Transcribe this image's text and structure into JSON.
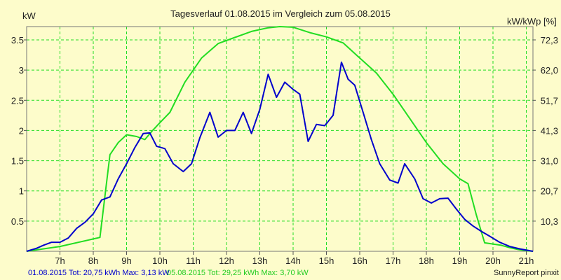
{
  "chart_data": {
    "type": "line",
    "title": "Tagesverlauf 01.08.2015 im Vergleich zum 05.08.2015",
    "ylabel_left": "kW",
    "ylabel_right": "kW/kWp [%]",
    "xlim": [
      6,
      21.2
    ],
    "ylim": [
      0,
      3.72
    ],
    "grid": true,
    "x_ticks": [
      {
        "x": 7,
        "label": "7h"
      },
      {
        "x": 8,
        "label": "8h"
      },
      {
        "x": 9,
        "label": "9h"
      },
      {
        "x": 10,
        "label": "10h"
      },
      {
        "x": 11,
        "label": "11h"
      },
      {
        "x": 12,
        "label": "12h"
      },
      {
        "x": 13,
        "label": "13h"
      },
      {
        "x": 14,
        "label": "14h"
      },
      {
        "x": 15,
        "label": "15h"
      },
      {
        "x": 16,
        "label": "16h"
      },
      {
        "x": 17,
        "label": "17h"
      },
      {
        "x": 18,
        "label": "18h"
      },
      {
        "x": 19,
        "label": "19h"
      },
      {
        "x": 20,
        "label": "20h"
      },
      {
        "x": 21,
        "label": "21h"
      }
    ],
    "y_ticks_left": [
      {
        "y": 0.5,
        "label": "0.5"
      },
      {
        "y": 1,
        "label": "1"
      },
      {
        "y": 1.5,
        "label": "1.5"
      },
      {
        "y": 2,
        "label": "2"
      },
      {
        "y": 2.5,
        "label": "2.5"
      },
      {
        "y": 3,
        "label": "3"
      },
      {
        "y": 3.5,
        "label": "3.5"
      }
    ],
    "y_ticks_right": [
      {
        "y": 0.5,
        "label": "10,3"
      },
      {
        "y": 1,
        "label": "20,7"
      },
      {
        "y": 1.5,
        "label": "31,0"
      },
      {
        "y": 2,
        "label": "41,3"
      },
      {
        "y": 2.5,
        "label": "51,7"
      },
      {
        "y": 3,
        "label": "62,0"
      },
      {
        "y": 3.5,
        "label": "72,3"
      }
    ],
    "series": [
      {
        "name": "01.08.2015",
        "color": "#0000cc",
        "x": [
          6.0,
          6.3,
          6.5,
          6.75,
          7.0,
          7.25,
          7.5,
          7.75,
          8.0,
          8.25,
          8.5,
          8.75,
          9.0,
          9.25,
          9.5,
          9.7,
          9.9,
          10.15,
          10.4,
          10.7,
          10.95,
          11.2,
          11.5,
          11.75,
          12.0,
          12.25,
          12.5,
          12.75,
          13.0,
          13.25,
          13.5,
          13.75,
          14.0,
          14.2,
          14.45,
          14.7,
          14.95,
          15.2,
          15.45,
          15.65,
          15.85,
          16.1,
          16.35,
          16.6,
          16.9,
          17.15,
          17.35,
          17.65,
          17.9,
          18.15,
          18.4,
          18.65,
          18.9,
          19.15,
          19.4,
          19.65,
          19.9,
          20.2,
          20.5,
          20.8,
          21.1,
          21.2
        ],
        "y": [
          0.0,
          0.05,
          0.1,
          0.15,
          0.15,
          0.22,
          0.38,
          0.48,
          0.62,
          0.85,
          0.9,
          1.2,
          1.45,
          1.72,
          1.95,
          1.96,
          1.74,
          1.7,
          1.45,
          1.32,
          1.45,
          1.88,
          2.3,
          1.89,
          2.0,
          2.0,
          2.3,
          1.95,
          2.35,
          2.93,
          2.55,
          2.8,
          2.68,
          2.6,
          1.82,
          2.1,
          2.08,
          2.25,
          3.13,
          2.85,
          2.75,
          2.3,
          1.85,
          1.45,
          1.18,
          1.13,
          1.45,
          1.2,
          0.87,
          0.8,
          0.87,
          0.88,
          0.7,
          0.53,
          0.42,
          0.33,
          0.25,
          0.15,
          0.08,
          0.04,
          0.01,
          0.0
        ]
      },
      {
        "name": "05.08.2015",
        "color": "#22dd22",
        "x": [
          6.0,
          7.0,
          8.2,
          8.5,
          8.75,
          9.0,
          9.3,
          9.55,
          9.75,
          9.95,
          10.3,
          10.75,
          11.25,
          11.75,
          12.25,
          12.75,
          13.25,
          13.6,
          14.0,
          14.5,
          15.0,
          15.5,
          16.0,
          16.5,
          17.0,
          17.5,
          18.0,
          18.5,
          19.0,
          19.25,
          19.5,
          19.75,
          20.0,
          20.25,
          20.5,
          20.75,
          21.0,
          21.2
        ],
        "y": [
          0.0,
          0.08,
          0.23,
          1.6,
          1.8,
          1.93,
          1.9,
          1.85,
          1.98,
          2.1,
          2.3,
          2.8,
          3.2,
          3.44,
          3.54,
          3.64,
          3.7,
          3.72,
          3.71,
          3.62,
          3.55,
          3.45,
          3.2,
          2.95,
          2.6,
          2.2,
          1.8,
          1.45,
          1.2,
          1.12,
          0.6,
          0.14,
          0.12,
          0.1,
          0.06,
          0.03,
          0.01,
          0.0
        ]
      }
    ]
  },
  "footer": {
    "series1_summary": "01.08.2015 Tot: 20,75 kWh Max: 3,13 kW",
    "series2_summary": "05.08.2015 Tot: 29,25 kWh Max: 3,70 kW",
    "credit": "SunnyReport pinxit"
  },
  "colors": {
    "background": "#fdfccb",
    "grid": "#22dd22",
    "series1": "#0000cc",
    "series2": "#22dd22"
  }
}
